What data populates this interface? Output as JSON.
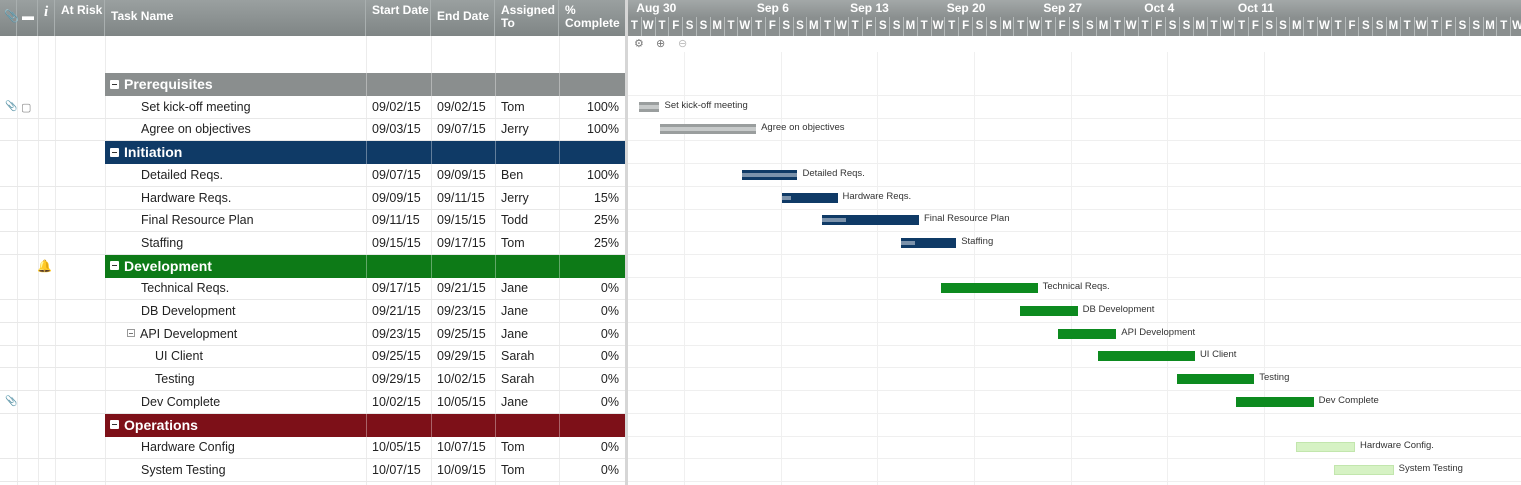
{
  "columns": {
    "attach": "",
    "comment": "",
    "info": "i",
    "at_risk": "At Risk",
    "task_name": "Task Name",
    "start": "Start Date",
    "end": "End Date",
    "assigned": "Assigned To",
    "complete": "% Complete"
  },
  "rows": [
    {
      "type": "section",
      "name": "Prerequisites",
      "color": "#8a8e8e"
    },
    {
      "type": "task",
      "name": "Set kick-off meeting",
      "start": "09/02/15",
      "end": "09/02/15",
      "assigned": "Tom",
      "pct": "100%",
      "attach": true,
      "comment": true
    },
    {
      "type": "task",
      "name": "Agree on objectives",
      "start": "09/03/15",
      "end": "09/07/15",
      "assigned": "Jerry",
      "pct": "100%"
    },
    {
      "type": "section",
      "name": "Initiation",
      "color": "#0f3a66"
    },
    {
      "type": "task",
      "name": "Detailed Reqs.",
      "start": "09/07/15",
      "end": "09/09/15",
      "assigned": "Ben",
      "pct": "100%"
    },
    {
      "type": "task",
      "name": "Hardware Reqs.",
      "start": "09/09/15",
      "end": "09/11/15",
      "assigned": "Jerry",
      "pct": "15%"
    },
    {
      "type": "task",
      "name": "Final Resource Plan",
      "start": "09/11/15",
      "end": "09/15/15",
      "assigned": "Todd",
      "pct": "25%"
    },
    {
      "type": "task",
      "name": "Staffing",
      "start": "09/15/15",
      "end": "09/17/15",
      "assigned": "Tom",
      "pct": "25%"
    },
    {
      "type": "section",
      "name": "Development",
      "color": "#0d7a17",
      "risk": true
    },
    {
      "type": "task",
      "name": "Technical Reqs.",
      "start": "09/17/15",
      "end": "09/21/15",
      "assigned": "Jane",
      "pct": "0%"
    },
    {
      "type": "task",
      "name": "DB Development",
      "start": "09/21/15",
      "end": "09/23/15",
      "assigned": "Jane",
      "pct": "0%"
    },
    {
      "type": "task",
      "name": "API Development",
      "start": "09/23/15",
      "end": "09/25/15",
      "assigned": "Jane",
      "pct": "0%",
      "collapse": true
    },
    {
      "type": "task",
      "name": "UI Client",
      "start": "09/25/15",
      "end": "09/29/15",
      "assigned": "Sarah",
      "pct": "0%",
      "indent": 2
    },
    {
      "type": "task",
      "name": "Testing",
      "start": "09/29/15",
      "end": "10/02/15",
      "assigned": "Sarah",
      "pct": "0%",
      "indent": 2
    },
    {
      "type": "task",
      "name": "Dev Complete",
      "start": "10/02/15",
      "end": "10/05/15",
      "assigned": "Jane",
      "pct": "0%",
      "attach": true
    },
    {
      "type": "section",
      "name": "Operations",
      "color": "#7d1018"
    },
    {
      "type": "task",
      "name": "Hardware Config",
      "start": "10/05/15",
      "end": "10/07/15",
      "assigned": "Tom",
      "pct": "0%"
    },
    {
      "type": "task",
      "name": "System Testing",
      "start": "10/07/15",
      "end": "10/09/15",
      "assigned": "Tom",
      "pct": "0%"
    }
  ],
  "gantt": {
    "weeks": [
      "Aug 30",
      "Sep 6",
      "Sep 13",
      "Sep 20",
      "Sep 27",
      "Oct 4",
      "Oct 11"
    ],
    "day_letters": [
      "T",
      "W",
      "T",
      "F",
      "S",
      "S",
      "M",
      "T",
      "W",
      "T",
      "F",
      "S",
      "S",
      "M",
      "T",
      "W",
      "T",
      "F",
      "S",
      "S",
      "M",
      "T",
      "W",
      "T",
      "F",
      "S",
      "S",
      "M",
      "T",
      "W",
      "T",
      "F",
      "S",
      "S",
      "M",
      "T",
      "W",
      "T",
      "F",
      "S",
      "S",
      "M",
      "T",
      "W",
      "T",
      "F",
      "S",
      "S",
      "M",
      "T",
      "W",
      "T",
      "F",
      "S",
      "S",
      "M",
      "T",
      "W",
      "T",
      "F",
      "S",
      "S",
      "M",
      "T",
      "W",
      "T"
    ],
    "toolbar_icons": [
      "gear-icon",
      "zoom-in-icon",
      "zoom-out-icon"
    ],
    "bars": [
      {
        "row": 1,
        "label": "Set kick-off meeting",
        "start_day": 1,
        "days": 1.5,
        "color": "#9a9e9e",
        "pct": 1.0
      },
      {
        "row": 2,
        "label": "Agree on objectives",
        "start_day": 2.5,
        "days": 7,
        "color": "#9a9e9e",
        "pct": 1.0
      },
      {
        "row": 4,
        "label": "Detailed Reqs.",
        "start_day": 8.5,
        "days": 4,
        "color": "#0f3a66",
        "pct": 1.0
      },
      {
        "row": 5,
        "label": "Hardware Reqs.",
        "start_day": 11.4,
        "days": 4,
        "color": "#0f3a66",
        "pct": 0.15
      },
      {
        "row": 6,
        "label": "Final Resource Plan",
        "start_day": 14.3,
        "days": 7,
        "color": "#0f3a66",
        "pct": 0.25
      },
      {
        "row": 7,
        "label": "Staffing",
        "start_day": 20,
        "days": 4,
        "color": "#0f3a66",
        "pct": 0.25
      },
      {
        "row": 9,
        "label": "Technical Reqs.",
        "start_day": 22.9,
        "days": 7,
        "color": "#0d8a1f",
        "pct": 0
      },
      {
        "row": 10,
        "label": "DB Development",
        "start_day": 28.6,
        "days": 4.2,
        "color": "#0d8a1f",
        "pct": 0
      },
      {
        "row": 11,
        "label": "API Development",
        "start_day": 31.4,
        "days": 4.2,
        "color": "#0d8a1f",
        "pct": 0
      },
      {
        "row": 12,
        "label": "UI Client",
        "start_day": 34.3,
        "days": 7,
        "color": "#0d8a1f",
        "pct": 0
      },
      {
        "row": 13,
        "label": "Testing",
        "start_day": 40,
        "days": 5.6,
        "color": "#0d8a1f",
        "pct": 0
      },
      {
        "row": 14,
        "label": "Dev Complete",
        "start_day": 44.3,
        "days": 5.6,
        "color": "#0d8a1f",
        "pct": 0
      },
      {
        "row": 16,
        "label": "Hardware Config.",
        "start_day": 48.6,
        "days": 4.3,
        "color": "#d6f2c4",
        "pct": 0
      },
      {
        "row": 17,
        "label": "System Testing",
        "start_day": 51.4,
        "days": 4.3,
        "color": "#d6f2c4",
        "pct": 0
      }
    ]
  }
}
